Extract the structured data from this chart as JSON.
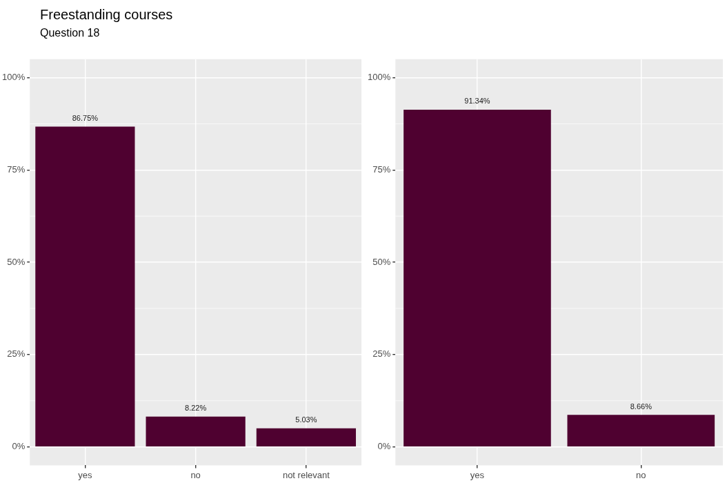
{
  "chart_data": [
    {
      "type": "bar",
      "title": "Freestanding courses",
      "subtitle": "Question 18",
      "categories": [
        "yes",
        "no",
        "not relevant"
      ],
      "values": [
        86.75,
        8.22,
        5.03
      ],
      "value_labels": [
        "86.75%",
        "8.22%",
        "5.03%"
      ],
      "color": "#4f0130",
      "ylim": [
        -5,
        105
      ],
      "yticks": [
        {
          "value": 0,
          "label": "0%"
        },
        {
          "value": 25,
          "label": "25%"
        },
        {
          "value": 50,
          "label": "50%"
        },
        {
          "value": 75,
          "label": "75%"
        },
        {
          "value": 100,
          "label": "100%"
        }
      ],
      "grid": true
    },
    {
      "type": "bar",
      "categories": [
        "yes",
        "no"
      ],
      "values": [
        91.34,
        8.66
      ],
      "value_labels": [
        "91.34%",
        "8.66%"
      ],
      "color": "#4f0130",
      "ylim": [
        -5,
        105
      ],
      "yticks": [
        {
          "value": 0,
          "label": "0%"
        },
        {
          "value": 25,
          "label": "25%"
        },
        {
          "value": 50,
          "label": "50%"
        },
        {
          "value": 75,
          "label": "75%"
        },
        {
          "value": 100,
          "label": "100%"
        }
      ],
      "grid": true
    }
  ]
}
